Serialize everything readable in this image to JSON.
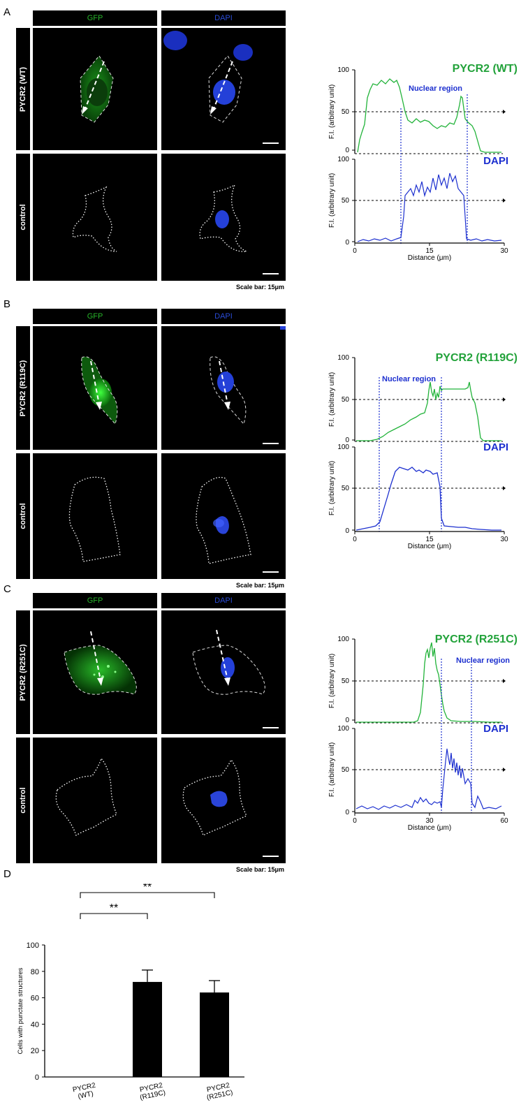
{
  "panels": [
    {
      "letter": "A",
      "col_headers": [
        "GFP",
        "DAPI"
      ],
      "row_labels": [
        "PYCR2 (WT)",
        "control"
      ],
      "scale_bar": "Scale bar: 15μm",
      "profile": {
        "title": "PYCR2 (WT)",
        "dapi_label": "DAPI",
        "nuclear_label": "Nuclear region",
        "ylabel": "F.I. (arbitrary unit)",
        "xlabel": "Distance (μm)",
        "xmax": 30,
        "x_ticks": [
          "0",
          "15",
          "30"
        ],
        "y_ticks_top": [
          "0",
          "50",
          "100"
        ],
        "y_ticks_bottom": [
          "0",
          "50",
          "100"
        ],
        "nuclear_bounds": [
          10.5,
          22.5
        ]
      }
    },
    {
      "letter": "B",
      "col_headers": [
        "GFP",
        "DAPI"
      ],
      "row_labels": [
        "PYCR2 (R119C)",
        "control"
      ],
      "scale_bar": "Scale bar: 15μm",
      "profile": {
        "title": "PYCR2 (R119C)",
        "dapi_label": "DAPI",
        "nuclear_label": "Nuclear region",
        "ylabel": "F.I. (arbitrary unit)",
        "xlabel": "Distance (μm)",
        "xmax": 30,
        "x_ticks": [
          "0",
          "15",
          "30"
        ],
        "y_ticks_top": [
          "0",
          "50",
          "100"
        ],
        "y_ticks_bottom": [
          "0",
          "50",
          "100"
        ],
        "nuclear_bounds": [
          5,
          17.5
        ]
      }
    },
    {
      "letter": "C",
      "col_headers": [
        "GFP",
        "DAPI"
      ],
      "row_labels": [
        "PYCR2 (R251C)",
        "control"
      ],
      "scale_bar": "Scale bar: 15μm",
      "profile": {
        "title": "PYCR2 (R251C)",
        "dapi_label": "DAPI",
        "nuclear_label": "Nuclear region",
        "ylabel": "F.I. (arbitrary unit)",
        "xlabel": "Distance (μm)",
        "xmax": 60,
        "x_ticks": [
          "0",
          "30",
          "60"
        ],
        "y_ticks_top": [
          "0",
          "50",
          "100"
        ],
        "y_ticks_bottom": [
          "0",
          "50",
          "100"
        ],
        "nuclear_bounds": [
          37,
          50
        ]
      }
    }
  ],
  "panel_d_letter": "D",
  "chart_data": {
    "type": "bar",
    "categories": [
      "PYCR2\n(WT)",
      "PYCR2\n(R119C)",
      "PYCR2\n(R251C)"
    ],
    "values": [
      0,
      72,
      64
    ],
    "errors": [
      0,
      9,
      9
    ],
    "ylabel": "Cells with punctate structures",
    "ylim": [
      0,
      100
    ],
    "y_ticks": [
      "0",
      "20",
      "40",
      "60",
      "80",
      "100"
    ],
    "significance": [
      "**",
      "**"
    ]
  }
}
